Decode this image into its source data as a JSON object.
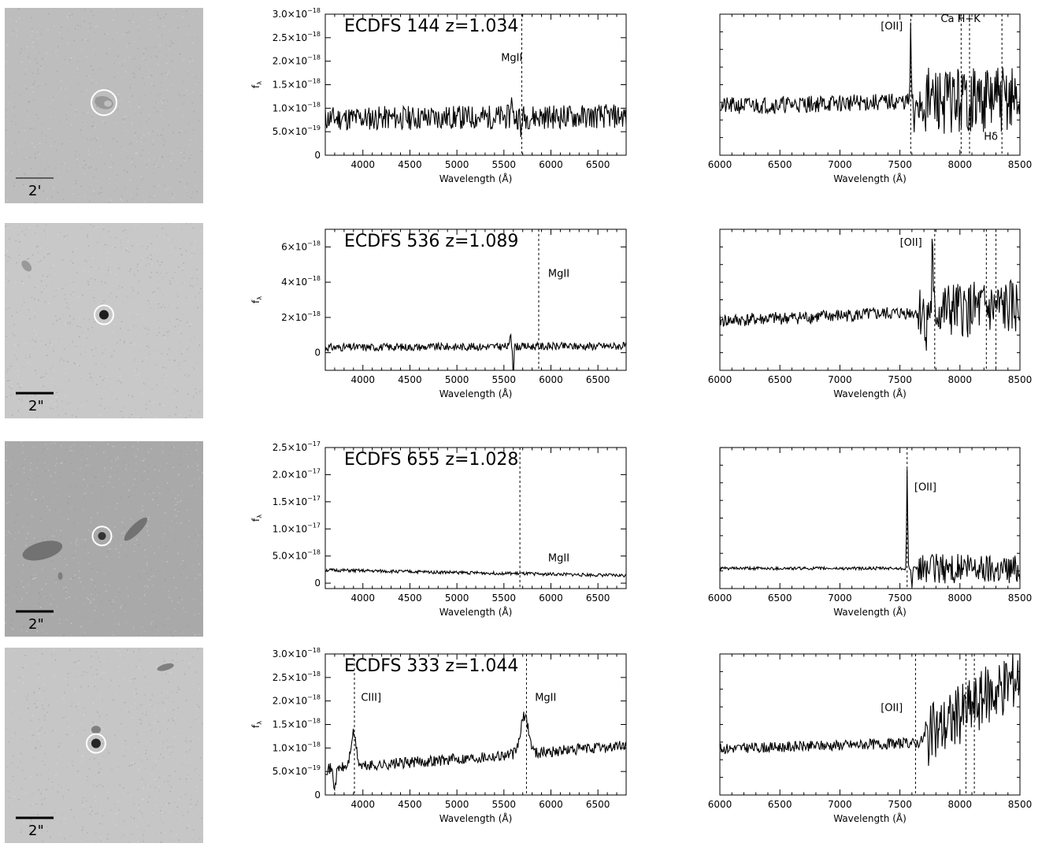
{
  "panels": [
    {
      "image": {
        "scale_label": "2'",
        "background": "#bdbdbd",
        "marker": {
          "cx_frac": 0.5,
          "cy_frac": 0.485,
          "r": 16
        },
        "blobs": [
          {
            "cx_frac": 0.5,
            "cy_frac": 0.485,
            "rx": 12,
            "ry": 8,
            "rot": 15,
            "dark": 0.6
          },
          {
            "cx_frac": 0.52,
            "cy_frac": 0.49,
            "rx": 5,
            "ry": 4,
            "rot": 0,
            "dark": 0.75
          }
        ]
      },
      "spec1": {
        "title": "ECDFS 144  z=1.034",
        "xlabel": "Wavelength (Å)",
        "ylabel": "f",
        "ylabel_sub": "λ",
        "x_range": [
          3600,
          6800
        ],
        "y_range": [
          0,
          3.0
        ],
        "x_ticks": [
          "4000",
          "4500",
          "5000",
          "5500",
          "6000",
          "6500"
        ],
        "y_ticks": [
          {
            "mant": "0",
            "exp": "",
            "val": 0
          },
          {
            "mant": "5.0×10",
            "exp": "−19",
            "val": 0.5
          },
          {
            "mant": "1.0×10",
            "exp": "−18",
            "val": 1.0
          },
          {
            "mant": "1.5×10",
            "exp": "−18",
            "val": 1.5
          },
          {
            "mant": "2.0×10",
            "exp": "−18",
            "val": 2.0
          },
          {
            "mant": "2.5×10",
            "exp": "−18",
            "val": 2.5
          },
          {
            "mant": "3.0×10",
            "exp": "−18",
            "val": 3.0
          }
        ],
        "spectrum": {
          "base": 0.78,
          "slope": 0.05,
          "noise": 0.26,
          "features": [
            [
              5580,
              0.6,
              8
            ],
            [
              5680,
              -0.5,
              6
            ]
          ],
          "seed": 11
        },
        "lines": [
          {
            "x": 5690,
            "label": "MgII",
            "label_x": 5470,
            "label_y": 2.0
          }
        ]
      },
      "spec2": {
        "xlabel": "Wavelength (Å)",
        "x_range": [
          6000,
          8500
        ],
        "y_range": [
          -0.1,
          2.2
        ],
        "x_ticks": [
          "6000",
          "6500",
          "7000",
          "7500",
          "8000",
          "8500"
        ],
        "spectrum": {
          "base": 0.7,
          "slope": 0.12,
          "noise": 0.14,
          "features": [
            [
              7590,
              1.2,
              6
            ],
            [
              7620,
              -0.6,
              6
            ]
          ],
          "noise_after": 7650,
          "noise_after_amp": 0.55,
          "seed": 21
        },
        "lines": [
          {
            "x": 7590,
            "label": "[OII]",
            "label_x": 7340,
            "label_y": 1.95
          },
          {
            "x": 8010,
            "label": "",
            "label_x": 0,
            "label_y": 0
          },
          {
            "x": 8080,
            "label": "",
            "label_x": 0,
            "label_y": 0
          },
          {
            "x": 8350,
            "label": "",
            "label_x": 0,
            "label_y": 0
          }
        ],
        "extra_labels": [
          {
            "text": "Ca  H+K",
            "x": 7840,
            "y": 2.07
          },
          {
            "text": "Hδ",
            "x": 8200,
            "y": 0.15
          }
        ]
      }
    },
    {
      "image": {
        "scale_label": "2\"",
        "background": "#c8c8c8",
        "marker": {
          "cx_frac": 0.5,
          "cy_frac": 0.47,
          "r": 12
        },
        "blobs": [
          {
            "cx_frac": 0.5,
            "cy_frac": 0.47,
            "rx": 6,
            "ry": 6,
            "rot": 0,
            "dark": 0.12
          },
          {
            "cx_frac": 0.11,
            "cy_frac": 0.22,
            "rx": 8,
            "ry": 5,
            "rot": 50,
            "dark": 0.6
          }
        ]
      },
      "spec1": {
        "title": "ECDFS 536  z=1.089",
        "xlabel": "Wavelength (Å)",
        "ylabel": "f",
        "ylabel_sub": "λ",
        "x_range": [
          3600,
          6800
        ],
        "y_range": [
          -1.0,
          7.0
        ],
        "x_ticks": [
          "4000",
          "4500",
          "5000",
          "5500",
          "6000",
          "6500"
        ],
        "y_ticks": [
          {
            "mant": "0",
            "exp": "",
            "val": 0
          },
          {
            "mant": "2×10",
            "exp": "−18",
            "val": 2
          },
          {
            "mant": "4×10",
            "exp": "−18",
            "val": 4
          },
          {
            "mant": "6×10",
            "exp": "−18",
            "val": 6
          }
        ],
        "spectrum": {
          "base": 0.3,
          "slope": 0.08,
          "noise": 0.22,
          "features": [
            [
              5570,
              1.1,
              6
            ],
            [
              5600,
              -1.8,
              6
            ]
          ],
          "seed": 31
        },
        "lines": [
          {
            "x": 5870,
            "label": "MgII",
            "label_x": 5970,
            "label_y": 4.3
          }
        ]
      },
      "spec2": {
        "xlabel": "Wavelength (Å)",
        "x_range": [
          6000,
          8500
        ],
        "y_range": [
          -0.3,
          2.7
        ],
        "x_ticks": [
          "6000",
          "6500",
          "7000",
          "7500",
          "8000",
          "8500"
        ],
        "spectrum": {
          "base": 0.75,
          "slope": 0.28,
          "noise": 0.14,
          "features": [
            [
              7770,
              1.4,
              6
            ],
            [
              7720,
              -0.7,
              6
            ]
          ],
          "noise_after": 7650,
          "noise_after_amp": 0.6,
          "seed": 41
        },
        "lines": [
          {
            "x": 7790,
            "label": "[OII]",
            "label_x": 7500,
            "label_y": 2.35
          },
          {
            "x": 8220,
            "label": "",
            "label_x": 0,
            "label_y": 0
          },
          {
            "x": 8300,
            "label": "",
            "label_x": 0,
            "label_y": 0
          }
        ],
        "extra_labels": []
      }
    },
    {
      "image": {
        "scale_label": "2\"",
        "background": "#a9a9a9",
        "marker": {
          "cx_frac": 0.49,
          "cy_frac": 0.485,
          "r": 12
        },
        "blobs": [
          {
            "cx_frac": 0.49,
            "cy_frac": 0.485,
            "rx": 5,
            "ry": 5,
            "rot": 0,
            "dark": 0.2
          },
          {
            "cx_frac": 0.19,
            "cy_frac": 0.56,
            "rx": 26,
            "ry": 11,
            "rot": -15,
            "dark": 0.45
          },
          {
            "cx_frac": 0.66,
            "cy_frac": 0.45,
            "rx": 20,
            "ry": 6,
            "rot": -45,
            "dark": 0.45
          },
          {
            "cx_frac": 0.28,
            "cy_frac": 0.69,
            "rx": 3,
            "ry": 5,
            "rot": 0,
            "dark": 0.5
          }
        ]
      },
      "spec1": {
        "title": "ECDFS 655  z=1.028",
        "xlabel": "Wavelength (Å)",
        "ylabel": "f",
        "ylabel_sub": "λ",
        "x_range": [
          3600,
          6800
        ],
        "y_range": [
          -0.1,
          2.5
        ],
        "x_ticks": [
          "4000",
          "4500",
          "5000",
          "5500",
          "6000",
          "6500"
        ],
        "y_ticks": [
          {
            "mant": "0",
            "exp": "",
            "val": 0
          },
          {
            "mant": "5.0×10",
            "exp": "−18",
            "val": 0.5
          },
          {
            "mant": "1.0×10",
            "exp": "−17",
            "val": 1.0
          },
          {
            "mant": "1.5×10",
            "exp": "−17",
            "val": 1.5
          },
          {
            "mant": "2.0×10",
            "exp": "−17",
            "val": 2.0
          },
          {
            "mant": "2.5×10",
            "exp": "−17",
            "val": 2.5
          }
        ],
        "spectrum": {
          "base": 0.24,
          "slope": -0.1,
          "noise": 0.03,
          "features": [],
          "seed": 51
        },
        "lines": [
          {
            "x": 5670,
            "label": "MgII",
            "label_x": 5970,
            "label_y": 0.4
          }
        ]
      },
      "spec2": {
        "xlabel": "Wavelength (Å)",
        "x_range": [
          6000,
          8500
        ],
        "y_range": [
          -0.1,
          2.7
        ],
        "x_ticks": [
          "6000",
          "6500",
          "7000",
          "7500",
          "8000",
          "8500"
        ],
        "spectrum": {
          "base": 0.3,
          "slope": 0.0,
          "noise": 0.03,
          "features": [
            [
              7560,
              2.0,
              6
            ],
            [
              7600,
              -0.4,
              6
            ]
          ],
          "noise_after": 7650,
          "noise_after_amp": 0.3,
          "seed": 61
        },
        "lines": [
          {
            "x": 7560,
            "label": "[OII]",
            "label_x": 7620,
            "label_y": 1.85
          }
        ],
        "extra_labels": []
      }
    },
    {
      "image": {
        "scale_label": "2\"",
        "background": "#c6c6c6",
        "marker": {
          "cx_frac": 0.46,
          "cy_frac": 0.49,
          "r": 12
        },
        "blobs": [
          {
            "cx_frac": 0.46,
            "cy_frac": 0.49,
            "rx": 6,
            "ry": 6,
            "rot": 0,
            "dark": 0.15
          },
          {
            "cx_frac": 0.46,
            "cy_frac": 0.42,
            "rx": 6,
            "ry": 5,
            "rot": 0,
            "dark": 0.5
          },
          {
            "cx_frac": 0.81,
            "cy_frac": 0.1,
            "rx": 11,
            "ry": 4,
            "rot": -15,
            "dark": 0.5
          }
        ]
      },
      "spec1": {
        "title": "ECDFS 333  z=1.044",
        "xlabel": "Wavelength (Å)",
        "ylabel": "f",
        "ylabel_sub": "λ",
        "x_range": [
          3600,
          6800
        ],
        "y_range": [
          0,
          3.0
        ],
        "x_ticks": [
          "4000",
          "4500",
          "5000",
          "5500",
          "6000",
          "6500"
        ],
        "y_ticks": [
          {
            "mant": "0",
            "exp": "",
            "val": 0
          },
          {
            "mant": "5.0×10",
            "exp": "−19",
            "val": 0.5
          },
          {
            "mant": "1.0×10",
            "exp": "−18",
            "val": 1.0
          },
          {
            "mant": "1.5×10",
            "exp": "−18",
            "val": 1.5
          },
          {
            "mant": "2.0×10",
            "exp": "−18",
            "val": 2.0
          },
          {
            "mant": "2.5×10",
            "exp": "−18",
            "val": 2.5
          },
          {
            "mant": "3.0×10",
            "exp": "−18",
            "val": 3.0
          }
        ],
        "spectrum": {
          "base": 0.55,
          "slope": 0.5,
          "noise": 0.12,
          "features": [
            [
              3900,
              0.7,
              40
            ],
            [
              5720,
              0.8,
              60
            ],
            [
              3700,
              -0.4,
              20
            ]
          ],
          "seed": 71
        },
        "lines": [
          {
            "x": 3910,
            "label": "CIII]",
            "label_x": 3980,
            "label_y": 2.0
          },
          {
            "x": 5740,
            "label": "MgII",
            "label_x": 5830,
            "label_y": 2.0
          }
        ]
      },
      "spec2": {
        "xlabel": "Wavelength (Å)",
        "x_range": [
          6000,
          8500
        ],
        "y_range": [
          -0.2,
          3.0
        ],
        "x_ticks": [
          "6000",
          "6500",
          "7000",
          "7500",
          "8000",
          "8500"
        ],
        "spectrum": {
          "base": 0.85,
          "slope": 0.2,
          "noise": 0.12,
          "features": [],
          "noise_after": 7700,
          "noise_after_amp": 0.7,
          "rise_after": 7650,
          "rise": 1.5,
          "seed": 81
        },
        "lines": [
          {
            "x": 7630,
            "label": "[OII]",
            "label_x": 7340,
            "label_y": 1.7
          },
          {
            "x": 8050,
            "label": "",
            "label_x": 0,
            "label_y": 0
          },
          {
            "x": 8120,
            "label": "",
            "label_x": 0,
            "label_y": 0
          }
        ],
        "extra_labels": []
      }
    }
  ],
  "chart_data": [
    {
      "type": "line",
      "title": "ECDFS 144  z=1.034",
      "xlabel": "Wavelength (Å)",
      "ylabel": "fλ",
      "xlim": [
        3600,
        6800
      ],
      "ylim": [
        0,
        3e-18
      ],
      "annotations": [
        "MgII"
      ]
    },
    {
      "type": "line",
      "title": "",
      "xlabel": "Wavelength (Å)",
      "xlim": [
        6000,
        8500
      ],
      "annotations": [
        "[OII]",
        "Ca  H+K",
        "Hδ"
      ]
    },
    {
      "type": "line",
      "title": "ECDFS 536  z=1.089",
      "xlabel": "Wavelength (Å)",
      "ylabel": "fλ",
      "xlim": [
        3600,
        6800
      ],
      "ylim": [
        -1e-18,
        7e-18
      ],
      "annotations": [
        "MgII"
      ]
    },
    {
      "type": "line",
      "title": "",
      "xlabel": "Wavelength (Å)",
      "xlim": [
        6000,
        8500
      ],
      "annotations": [
        "[OII]"
      ]
    },
    {
      "type": "line",
      "title": "ECDFS 655  z=1.028",
      "xlabel": "Wavelength (Å)",
      "ylabel": "fλ",
      "xlim": [
        3600,
        6800
      ],
      "ylim": [
        0,
        2.5e-17
      ],
      "annotations": [
        "MgII"
      ]
    },
    {
      "type": "line",
      "title": "",
      "xlabel": "Wavelength (Å)",
      "xlim": [
        6000,
        8500
      ],
      "annotations": [
        "[OII]"
      ]
    },
    {
      "type": "line",
      "title": "ECDFS 333  z=1.044",
      "xlabel": "Wavelength (Å)",
      "ylabel": "fλ",
      "xlim": [
        3600,
        6800
      ],
      "ylim": [
        0,
        3e-18
      ],
      "annotations": [
        "CIII]",
        "MgII"
      ]
    },
    {
      "type": "line",
      "title": "",
      "xlabel": "Wavelength (Å)",
      "xlim": [
        6000,
        8500
      ],
      "annotations": [
        "[OII]"
      ]
    }
  ]
}
